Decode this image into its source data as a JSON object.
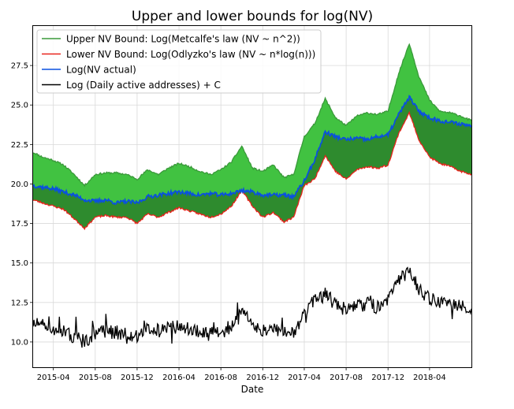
{
  "chart_data": {
    "type": "line",
    "title": "Upper and lower bounds for log(NV)",
    "xlabel": "Date",
    "ylabel": "",
    "x_range": [
      "2015-02-01",
      "2018-08-01"
    ],
    "ylim": [
      8.4,
      30.0
    ],
    "grid": true,
    "legend_position": "top-left",
    "x_ticks": [
      "2015-04",
      "2015-08",
      "2015-12",
      "2016-04",
      "2016-08",
      "2016-12",
      "2017-04",
      "2017-08",
      "2017-12",
      "2018-04"
    ],
    "y_ticks": [
      "10.0",
      "12.5",
      "15.0",
      "17.5",
      "20.0",
      "22.5",
      "25.0",
      "27.5"
    ],
    "y_tick_values": [
      10.0,
      12.5,
      15.0,
      17.5,
      20.0,
      22.5,
      25.0,
      27.5
    ],
    "fill_colors": {
      "upper_band": "#41c241",
      "lower_band": "#2e8b2e"
    },
    "series": [
      {
        "name": "Upper NV Bound: Log(Metcalfe's law (NV ~ n^2))",
        "color": "#3a9a3a",
        "x": [
          "2015-02-01",
          "2015-03-01",
          "2015-04-01",
          "2015-05-01",
          "2015-06-01",
          "2015-07-01",
          "2015-08-01",
          "2015-09-01",
          "2015-10-01",
          "2015-11-01",
          "2015-12-01",
          "2016-01-01",
          "2016-02-01",
          "2016-03-01",
          "2016-04-01",
          "2016-05-01",
          "2016-06-01",
          "2016-07-01",
          "2016-08-01",
          "2016-09-01",
          "2016-10-01",
          "2016-11-01",
          "2016-12-01",
          "2017-01-01",
          "2017-02-01",
          "2017-03-01",
          "2017-04-01",
          "2017-05-01",
          "2017-06-01",
          "2017-07-01",
          "2017-08-01",
          "2017-09-01",
          "2017-10-01",
          "2017-11-01",
          "2017-12-01",
          "2018-01-01",
          "2018-02-01",
          "2018-03-01",
          "2018-04-01",
          "2018-05-01",
          "2018-06-01",
          "2018-07-01",
          "2018-08-01"
        ],
        "y": [
          22.0,
          21.7,
          21.5,
          21.2,
          20.6,
          19.9,
          20.6,
          20.7,
          20.7,
          20.6,
          20.3,
          20.9,
          20.6,
          21.0,
          21.3,
          21.1,
          20.8,
          20.6,
          20.9,
          21.4,
          22.4,
          21.0,
          20.8,
          21.2,
          20.4,
          20.6,
          23.0,
          23.8,
          25.4,
          24.2,
          23.7,
          24.3,
          24.5,
          24.4,
          24.6,
          27.0,
          28.9,
          26.8,
          25.3,
          24.6,
          24.5,
          24.3,
          24.0
        ]
      },
      {
        "name": "Lower NV Bound: Log(Odlyzko's law (NV ~ n*log(n)))",
        "color": "#e8241c",
        "x": [
          "2015-02-01",
          "2015-03-01",
          "2015-04-01",
          "2015-05-01",
          "2015-06-01",
          "2015-07-01",
          "2015-08-01",
          "2015-09-01",
          "2015-10-01",
          "2015-11-01",
          "2015-12-01",
          "2016-01-01",
          "2016-02-01",
          "2016-03-01",
          "2016-04-01",
          "2016-05-01",
          "2016-06-01",
          "2016-07-01",
          "2016-08-01",
          "2016-09-01",
          "2016-10-01",
          "2016-11-01",
          "2016-12-01",
          "2017-01-01",
          "2017-02-01",
          "2017-03-01",
          "2017-04-01",
          "2017-05-01",
          "2017-06-01",
          "2017-07-01",
          "2017-08-01",
          "2017-09-01",
          "2017-10-01",
          "2017-11-01",
          "2017-12-01",
          "2018-01-01",
          "2018-02-01",
          "2018-03-01",
          "2018-04-01",
          "2018-05-01",
          "2018-06-01",
          "2018-07-01",
          "2018-08-01"
        ],
        "y": [
          19.0,
          18.8,
          18.6,
          18.4,
          17.8,
          17.2,
          17.9,
          18.0,
          17.9,
          17.9,
          17.5,
          18.1,
          17.9,
          18.2,
          18.5,
          18.3,
          18.1,
          17.9,
          18.1,
          18.6,
          19.6,
          18.6,
          17.9,
          18.2,
          17.6,
          17.9,
          19.9,
          20.3,
          21.8,
          20.8,
          20.3,
          20.9,
          21.1,
          21.0,
          21.2,
          23.2,
          24.5,
          22.8,
          21.7,
          21.3,
          21.1,
          20.8,
          20.6
        ]
      },
      {
        "name": "Log(NV actual)",
        "color": "#0a50e0",
        "x": [
          "2015-02-01",
          "2015-03-01",
          "2015-04-01",
          "2015-05-01",
          "2015-06-01",
          "2015-07-01",
          "2015-08-01",
          "2015-09-01",
          "2015-10-01",
          "2015-11-01",
          "2015-12-01",
          "2016-01-01",
          "2016-02-01",
          "2016-03-01",
          "2016-04-01",
          "2016-05-01",
          "2016-06-01",
          "2016-07-01",
          "2016-08-01",
          "2016-09-01",
          "2016-10-01",
          "2016-11-01",
          "2016-12-01",
          "2017-01-01",
          "2017-02-01",
          "2017-03-01",
          "2017-04-01",
          "2017-05-01",
          "2017-06-01",
          "2017-07-01",
          "2017-08-01",
          "2017-09-01",
          "2017-10-01",
          "2017-11-01",
          "2017-12-01",
          "2018-01-01",
          "2018-02-01",
          "2018-03-01",
          "2018-04-01",
          "2018-05-01",
          "2018-06-01",
          "2018-07-01",
          "2018-08-01"
        ],
        "y": [
          19.9,
          19.8,
          19.7,
          19.5,
          19.3,
          19.0,
          18.9,
          19.0,
          18.8,
          18.9,
          18.8,
          19.2,
          19.3,
          19.4,
          19.5,
          19.4,
          19.3,
          19.4,
          19.3,
          19.4,
          19.6,
          19.5,
          19.3,
          19.3,
          19.3,
          19.2,
          20.2,
          21.5,
          23.3,
          23.0,
          22.8,
          22.9,
          22.8,
          23.0,
          23.1,
          24.4,
          25.5,
          24.6,
          24.2,
          24.0,
          23.9,
          23.8,
          23.7
        ]
      },
      {
        "name": "Log (Daily active addresses) + C",
        "color": "#000000",
        "x": [
          "2015-02-01",
          "2015-03-01",
          "2015-04-01",
          "2015-05-01",
          "2015-06-01",
          "2015-07-01",
          "2015-08-01",
          "2015-09-01",
          "2015-10-01",
          "2015-11-01",
          "2015-12-01",
          "2016-01-01",
          "2016-02-01",
          "2016-03-01",
          "2016-04-01",
          "2016-05-01",
          "2016-06-01",
          "2016-07-01",
          "2016-08-01",
          "2016-09-01",
          "2016-10-01",
          "2016-11-01",
          "2016-12-01",
          "2017-01-01",
          "2017-02-01",
          "2017-03-01",
          "2017-04-01",
          "2017-05-01",
          "2017-06-01",
          "2017-07-01",
          "2017-08-01",
          "2017-09-01",
          "2017-10-01",
          "2017-11-01",
          "2017-12-01",
          "2018-01-01",
          "2018-02-01",
          "2018-03-01",
          "2018-04-01",
          "2018-05-01",
          "2018-06-01",
          "2018-07-01",
          "2018-08-01"
        ],
        "y": [
          11.2,
          11.0,
          10.9,
          10.6,
          10.3,
          10.0,
          10.6,
          10.7,
          10.6,
          10.5,
          10.4,
          10.8,
          10.7,
          10.9,
          11.0,
          10.9,
          10.6,
          10.5,
          10.6,
          11.0,
          11.9,
          11.1,
          10.7,
          10.9,
          10.6,
          10.6,
          11.8,
          12.6,
          13.0,
          12.4,
          12.0,
          12.3,
          12.4,
          12.2,
          12.6,
          13.8,
          14.6,
          13.3,
          12.8,
          12.5,
          12.4,
          12.2,
          12.1
        ]
      }
    ]
  }
}
